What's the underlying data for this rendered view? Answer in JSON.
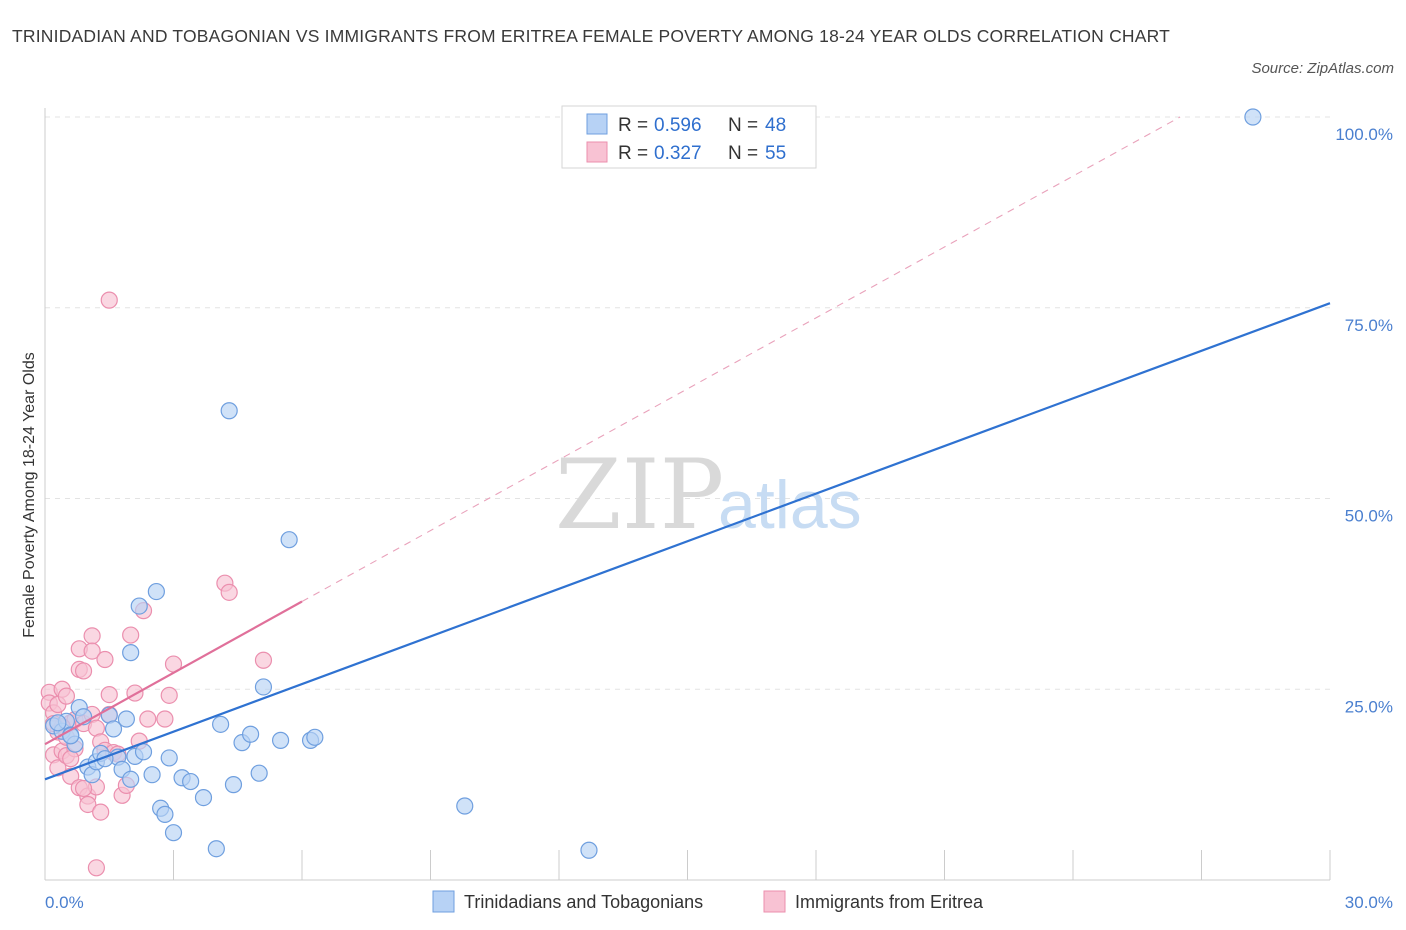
{
  "title": "TRINIDADIAN AND TOBAGONIAN VS IMMIGRANTS FROM ERITREA FEMALE POVERTY AMONG 18-24 YEAR OLDS CORRELATION CHART",
  "source": "Source: ZipAtlas.com",
  "watermark": {
    "zip": "ZIP",
    "atlas": "atlas"
  },
  "legend": {
    "rows": [
      {
        "r_label": "R = ",
        "r_value": "0.596",
        "n_label": "N = ",
        "n_value": "48"
      },
      {
        "r_label": "R = ",
        "r_value": "0.327",
        "n_label": "N = ",
        "n_value": "55"
      }
    ]
  },
  "colors": {
    "blue_fill": "#b7d2f5",
    "blue_stroke": "#6f9fdf",
    "blue_line": "#2f72d1",
    "pink_fill": "#f8c2d3",
    "pink_stroke": "#eb8fae",
    "pink_line": "#e0709a",
    "grid": "#e3e3e3",
    "tick_text": "#4a7fcf"
  },
  "chart_data": {
    "type": "scatter",
    "ylabel": "Female Poverty Among 18-24 Year Olds",
    "x_tick_labels": [
      "0.0%",
      "30.0%"
    ],
    "y_tick_labels": [
      "25.0%",
      "50.0%",
      "75.0%",
      "100.0%"
    ],
    "xlim": [
      0,
      30
    ],
    "ylim": [
      0,
      100
    ],
    "grid": "horizontal dashed",
    "legend_placement": "top-center",
    "series": [
      {
        "name": "Trinidadians and Tobagonians",
        "color": "blue",
        "points": [
          [
            0.2,
            20.2
          ],
          [
            0.4,
            19.5
          ],
          [
            0.5,
            20.8
          ],
          [
            0.6,
            19.0
          ],
          [
            0.7,
            17.8
          ],
          [
            0.8,
            22.6
          ],
          [
            0.9,
            21.4
          ],
          [
            1.0,
            14.8
          ],
          [
            1.1,
            13.8
          ],
          [
            1.2,
            15.5
          ],
          [
            1.3,
            16.6
          ],
          [
            1.5,
            21.6
          ],
          [
            1.6,
            19.8
          ],
          [
            1.7,
            16.1
          ],
          [
            1.8,
            14.5
          ],
          [
            1.9,
            21.1
          ],
          [
            2.0,
            13.2
          ],
          [
            2.1,
            16.2
          ],
          [
            2.0,
            29.8
          ],
          [
            2.2,
            35.9
          ],
          [
            2.3,
            16.8
          ],
          [
            2.5,
            13.8
          ],
          [
            2.6,
            37.8
          ],
          [
            2.7,
            9.4
          ],
          [
            2.8,
            8.6
          ],
          [
            2.9,
            16.0
          ],
          [
            3.0,
            6.2
          ],
          [
            3.2,
            13.4
          ],
          [
            3.4,
            12.9
          ],
          [
            3.7,
            10.8
          ],
          [
            4.0,
            4.1
          ],
          [
            4.1,
            20.4
          ],
          [
            4.3,
            61.5
          ],
          [
            4.4,
            12.5
          ],
          [
            4.6,
            18.0
          ],
          [
            4.8,
            19.1
          ],
          [
            5.0,
            14.0
          ],
          [
            5.1,
            25.3
          ],
          [
            5.5,
            18.3
          ],
          [
            5.7,
            44.6
          ],
          [
            6.2,
            18.3
          ],
          [
            6.3,
            18.7
          ],
          [
            9.8,
            9.7
          ],
          [
            12.7,
            3.9
          ],
          [
            28.2,
            100.0
          ],
          [
            0.3,
            20.6
          ],
          [
            1.4,
            15.9
          ],
          [
            0.6,
            18.9
          ]
        ]
      },
      {
        "name": "Immigrants from Eritrea",
        "color": "pink",
        "points": [
          [
            0.1,
            24.6
          ],
          [
            0.1,
            23.2
          ],
          [
            0.2,
            21.9
          ],
          [
            0.2,
            16.4
          ],
          [
            0.3,
            19.4
          ],
          [
            0.3,
            14.7
          ],
          [
            0.3,
            23.0
          ],
          [
            0.4,
            16.9
          ],
          [
            0.4,
            25.0
          ],
          [
            0.5,
            24.1
          ],
          [
            0.5,
            18.7
          ],
          [
            0.5,
            16.3
          ],
          [
            0.6,
            20.6
          ],
          [
            0.6,
            13.6
          ],
          [
            0.7,
            21.0
          ],
          [
            0.7,
            17.2
          ],
          [
            0.8,
            30.3
          ],
          [
            0.8,
            27.6
          ],
          [
            0.8,
            12.1
          ],
          [
            0.9,
            27.4
          ],
          [
            0.9,
            20.5
          ],
          [
            1.0,
            11.0
          ],
          [
            1.0,
            9.9
          ],
          [
            1.1,
            21.7
          ],
          [
            1.1,
            32.0
          ],
          [
            1.1,
            30.0
          ],
          [
            1.2,
            12.2
          ],
          [
            1.2,
            19.9
          ],
          [
            1.3,
            18.1
          ],
          [
            1.3,
            8.9
          ],
          [
            1.4,
            28.9
          ],
          [
            1.4,
            17.0
          ],
          [
            1.5,
            24.3
          ],
          [
            1.5,
            21.7
          ],
          [
            1.5,
            76.0
          ],
          [
            1.6,
            16.7
          ],
          [
            1.2,
            1.6
          ],
          [
            1.8,
            11.1
          ],
          [
            1.9,
            12.4
          ],
          [
            2.0,
            32.1
          ],
          [
            2.1,
            24.5
          ],
          [
            2.2,
            18.2
          ],
          [
            2.3,
            35.3
          ],
          [
            2.4,
            21.1
          ],
          [
            2.8,
            21.1
          ],
          [
            2.9,
            24.2
          ],
          [
            3.0,
            28.3
          ],
          [
            4.2,
            38.9
          ],
          [
            4.3,
            37.7
          ],
          [
            5.1,
            28.8
          ],
          [
            0.9,
            12.0
          ],
          [
            0.4,
            20.1
          ],
          [
            0.6,
            15.9
          ],
          [
            0.2,
            20.5
          ],
          [
            1.7,
            16.5
          ]
        ]
      }
    ],
    "trend_lines": [
      {
        "series": "Trinidadians and Tobagonians",
        "from": [
          0,
          13.2
        ],
        "to": [
          30,
          75.6
        ]
      },
      {
        "series": "Immigrants from Eritrea",
        "from": [
          0,
          17.8
        ],
        "to": [
          6.0,
          36.5
        ],
        "dashed_extension_to": [
          26.5,
          100
        ]
      }
    ]
  },
  "bottom_legend": [
    "Trinidadians and Tobagonians",
    "Immigrants from Eritrea"
  ]
}
